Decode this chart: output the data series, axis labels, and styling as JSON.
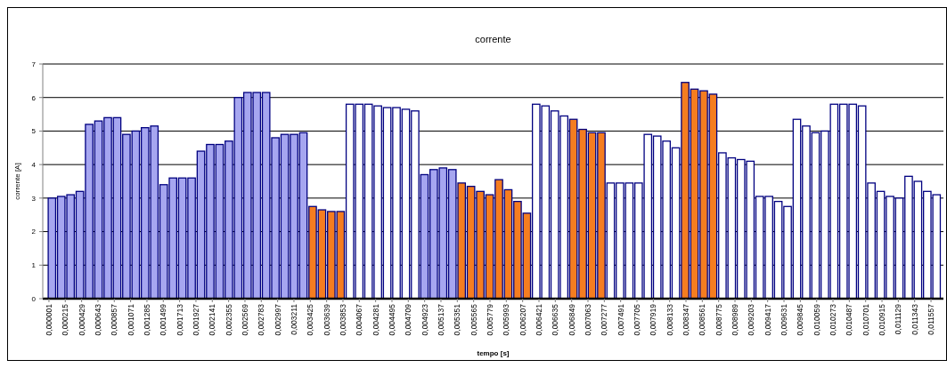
{
  "chart_data": {
    "type": "bar",
    "title": "corrente",
    "xlabel": "tempo [s]",
    "ylabel": "corrente [A]",
    "x": [
      4e-05,
      0.000162,
      0.000284,
      0.000406,
      0.000528,
      0.00065,
      0.000772,
      0.000894,
      0.001016,
      0.001138,
      0.00126,
      0.001382,
      0.001504,
      0.001626,
      0.001748,
      0.00187,
      0.001992,
      0.002114,
      0.002236,
      0.002358,
      0.00248,
      0.002602,
      0.002724,
      0.002846,
      0.002968,
      0.00309,
      0.003212,
      0.003334,
      0.003456,
      0.003578,
      0.0037,
      0.003822,
      0.003944,
      0.004066,
      0.004188,
      0.00431,
      0.004432,
      0.004554,
      0.004676,
      0.004798,
      0.00492,
      0.005042,
      0.005164,
      0.005286,
      0.005408,
      0.00553,
      0.005652,
      0.005774,
      0.005896,
      0.006018,
      0.00614,
      0.006262,
      0.006384,
      0.006506,
      0.006628,
      0.00675,
      0.006872,
      0.006994,
      0.007116,
      0.007238,
      0.00736,
      0.007482,
      0.007604,
      0.007726,
      0.007848,
      0.00797,
      0.008092,
      0.008214,
      0.008336,
      0.008458,
      0.00858,
      0.008702,
      0.008824,
      0.008946,
      0.009068,
      0.00919,
      0.009312,
      0.009434,
      0.009556,
      0.009678,
      0.0098,
      0.009922,
      0.010044,
      0.010166,
      0.010288,
      0.01041,
      0.010532,
      0.010654,
      0.010776,
      0.010898,
      0.01102,
      0.011142,
      0.011264,
      0.011386,
      0.011508,
      0.01163
    ],
    "values": [
      3.0,
      3.05,
      3.1,
      3.2,
      5.2,
      5.3,
      5.4,
      5.4,
      4.9,
      5.0,
      5.1,
      5.15,
      3.4,
      3.6,
      3.6,
      3.6,
      4.4,
      4.6,
      4.6,
      4.7,
      6.0,
      6.15,
      6.15,
      6.15,
      4.8,
      4.9,
      4.9,
      4.95,
      2.75,
      2.65,
      2.6,
      2.6,
      5.8,
      5.8,
      5.8,
      5.75,
      5.7,
      5.7,
      5.65,
      5.6,
      3.7,
      3.85,
      3.9,
      3.85,
      3.45,
      3.35,
      3.2,
      3.1,
      3.55,
      3.25,
      2.9,
      2.55,
      5.8,
      5.75,
      5.6,
      5.45,
      5.35,
      5.05,
      4.95,
      4.95,
      3.45,
      3.45,
      3.45,
      3.45,
      4.9,
      4.85,
      4.7,
      4.5,
      6.45,
      6.25,
      6.2,
      6.1,
      4.35,
      4.2,
      4.15,
      4.1,
      3.05,
      3.05,
      2.9,
      2.75,
      5.35,
      5.15,
      4.95,
      5.0,
      5.8,
      5.8,
      5.8,
      5.75,
      3.45,
      3.2,
      3.05,
      3.0,
      3.65,
      3.5,
      3.2,
      3.1
    ],
    "colors": [
      "#a6a6f0",
      "#a6a6f0",
      "#a6a6f0",
      "#a6a6f0",
      "#a6a6f0",
      "#a6a6f0",
      "#a6a6f0",
      "#a6a6f0",
      "#a6a6f0",
      "#a6a6f0",
      "#a6a6f0",
      "#a6a6f0",
      "#a6a6f0",
      "#a6a6f0",
      "#a6a6f0",
      "#a6a6f0",
      "#a6a6f0",
      "#a6a6f0",
      "#a6a6f0",
      "#a6a6f0",
      "#a6a6f0",
      "#a6a6f0",
      "#a6a6f0",
      "#a6a6f0",
      "#a6a6f0",
      "#a6a6f0",
      "#a6a6f0",
      "#a6a6f0",
      "#f57d20",
      "#f57d20",
      "#f57d20",
      "#f57d20",
      "#ffffff",
      "#ffffff",
      "#ffffff",
      "#ffffff",
      "#ffffff",
      "#ffffff",
      "#ffffff",
      "#ffffff",
      "#a6a6f0",
      "#a6a6f0",
      "#a6a6f0",
      "#a6a6f0",
      "#f57d20",
      "#f57d20",
      "#f57d20",
      "#f57d20",
      "#f57d20",
      "#f57d20",
      "#f57d20",
      "#f57d20",
      "#ffffff",
      "#ffffff",
      "#ffffff",
      "#ffffff",
      "#f57d20",
      "#f57d20",
      "#f57d20",
      "#f57d20",
      "#ffffff",
      "#ffffff",
      "#ffffff",
      "#ffffff",
      "#ffffff",
      "#ffffff",
      "#ffffff",
      "#ffffff",
      "#f57d20",
      "#f57d20",
      "#f57d20",
      "#f57d20",
      "#ffffff",
      "#ffffff",
      "#ffffff",
      "#ffffff",
      "#ffffff",
      "#ffffff",
      "#ffffff",
      "#ffffff",
      "#ffffff",
      "#ffffff",
      "#ffffff",
      "#ffffff",
      "#ffffff",
      "#ffffff",
      "#ffffff",
      "#ffffff",
      "#ffffff",
      "#ffffff",
      "#ffffff",
      "#ffffff",
      "#ffffff",
      "#ffffff",
      "#ffffff",
      "#ffffff"
    ],
    "xlim": [
      -8e-05,
      0.01172
    ],
    "xticks": [
      {
        "value": 1e-06,
        "label": "0,000001"
      },
      {
        "value": 0.000215,
        "label": "0,000215"
      },
      {
        "value": 0.000429,
        "label": "0,000429"
      },
      {
        "value": 0.000643,
        "label": "0,000643"
      },
      {
        "value": 0.000857,
        "label": "0,000857"
      },
      {
        "value": 0.001071,
        "label": "0,001071"
      },
      {
        "value": 0.001285,
        "label": "0,001285"
      },
      {
        "value": 0.001499,
        "label": "0,001499"
      },
      {
        "value": 0.001713,
        "label": "0,001713"
      },
      {
        "value": 0.001927,
        "label": "0,001927"
      },
      {
        "value": 0.002141,
        "label": "0,002141"
      },
      {
        "value": 0.002355,
        "label": "0,002355"
      },
      {
        "value": 0.002569,
        "label": "0,002569"
      },
      {
        "value": 0.002783,
        "label": "0,002783"
      },
      {
        "value": 0.002997,
        "label": "0,002997"
      },
      {
        "value": 0.003211,
        "label": "0,003211"
      },
      {
        "value": 0.003425,
        "label": "0,003425"
      },
      {
        "value": 0.003639,
        "label": "0,003639"
      },
      {
        "value": 0.003853,
        "label": "0,003853"
      },
      {
        "value": 0.004067,
        "label": "0,004067"
      },
      {
        "value": 0.004281,
        "label": "0,004281"
      },
      {
        "value": 0.004495,
        "label": "0,004495"
      },
      {
        "value": 0.004709,
        "label": "0,004709"
      },
      {
        "value": 0.004923,
        "label": "0,004923"
      },
      {
        "value": 0.005137,
        "label": "0,005137"
      },
      {
        "value": 0.005351,
        "label": "0,005351"
      },
      {
        "value": 0.005565,
        "label": "0,005565"
      },
      {
        "value": 0.005779,
        "label": "0,005779"
      },
      {
        "value": 0.005993,
        "label": "0,005993"
      },
      {
        "value": 0.006207,
        "label": "0,006207"
      },
      {
        "value": 0.006421,
        "label": "0,006421"
      },
      {
        "value": 0.006635,
        "label": "0,006635"
      },
      {
        "value": 0.006849,
        "label": "0,006849"
      },
      {
        "value": 0.007063,
        "label": "0,007063"
      },
      {
        "value": 0.007277,
        "label": "0,007277"
      },
      {
        "value": 0.007491,
        "label": "0,007491"
      },
      {
        "value": 0.007705,
        "label": "0,007705"
      },
      {
        "value": 0.007919,
        "label": "0,007919"
      },
      {
        "value": 0.008133,
        "label": "0,008133"
      },
      {
        "value": 0.008347,
        "label": "0,008347"
      },
      {
        "value": 0.008561,
        "label": "0,008561"
      },
      {
        "value": 0.008775,
        "label": "0,008775"
      },
      {
        "value": 0.008989,
        "label": "0,008989"
      },
      {
        "value": 0.009203,
        "label": "0,009203"
      },
      {
        "value": 0.009417,
        "label": "0,009417"
      },
      {
        "value": 0.009631,
        "label": "0,009631"
      },
      {
        "value": 0.009845,
        "label": "0,009845"
      },
      {
        "value": 0.010059,
        "label": "0,010059"
      },
      {
        "value": 0.010273,
        "label": "0,010273"
      },
      {
        "value": 0.010487,
        "label": "0,010487"
      },
      {
        "value": 0.010701,
        "label": "0,010701"
      },
      {
        "value": 0.010915,
        "label": "0,010915"
      },
      {
        "value": 0.011129,
        "label": "0,011129"
      },
      {
        "value": 0.011343,
        "label": "0,011343"
      },
      {
        "value": 0.011557,
        "label": "0,011557"
      }
    ],
    "ylim": [
      0,
      7
    ],
    "yticks": [
      0,
      1,
      2,
      3,
      4,
      5,
      6,
      7
    ],
    "grid": "y"
  }
}
